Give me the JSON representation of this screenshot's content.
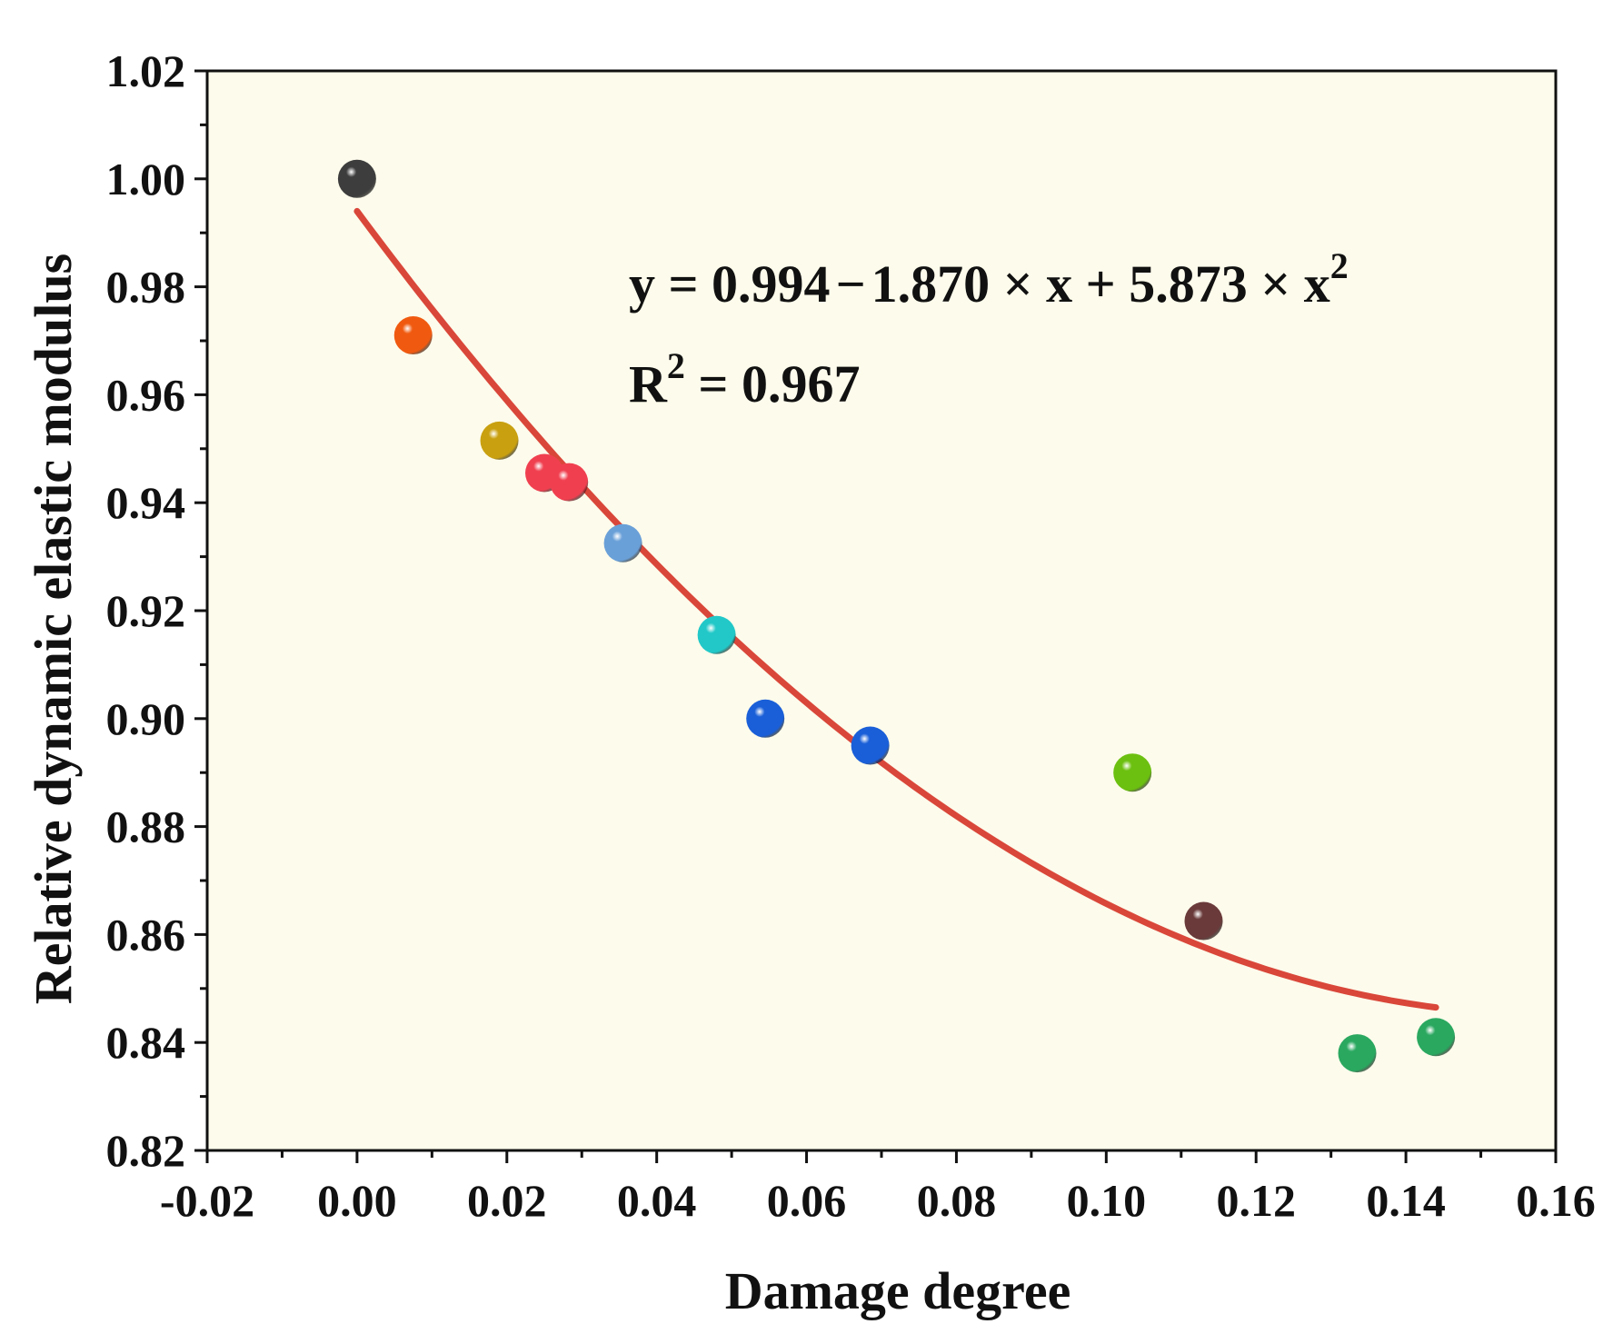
{
  "chart_data": {
    "type": "scatter",
    "title": "",
    "xlabel": "Damage degree",
    "ylabel": "Relative dynamic elastic modulus",
    "xlim": [
      -0.02,
      0.16
    ],
    "ylim": [
      0.82,
      1.02
    ],
    "xticks": [
      -0.02,
      0.0,
      0.02,
      0.04,
      0.06,
      0.08,
      0.1,
      0.12,
      0.14,
      0.16
    ],
    "xtick_labels": [
      "-0.02",
      "0.00",
      "0.02",
      "0.04",
      "0.06",
      "0.08",
      "0.10",
      "0.12",
      "0.14",
      "0.16"
    ],
    "yticks": [
      0.82,
      0.84,
      0.86,
      0.88,
      0.9,
      0.92,
      0.94,
      0.96,
      0.98,
      1.0,
      1.02
    ],
    "ytick_labels": [
      "0.82",
      "0.84",
      "0.86",
      "0.88",
      "0.90",
      "0.92",
      "0.94",
      "0.96",
      "0.98",
      "1.00",
      "1.02"
    ],
    "grid": false,
    "background_color": "#fdfbeb",
    "points": [
      {
        "x": 0.0,
        "y": 1.0,
        "color": "#3d3d3d"
      },
      {
        "x": 0.0075,
        "y": 0.971,
        "color": "#f05a10"
      },
      {
        "x": 0.019,
        "y": 0.9515,
        "color": "#c9a010"
      },
      {
        "x": 0.025,
        "y": 0.9455,
        "color": "#f04050"
      },
      {
        "x": 0.0283,
        "y": 0.9438,
        "color": "#f04050"
      },
      {
        "x": 0.0355,
        "y": 0.9325,
        "color": "#6aa0d8"
      },
      {
        "x": 0.048,
        "y": 0.9155,
        "color": "#22c8c8"
      },
      {
        "x": 0.0545,
        "y": 0.9,
        "color": "#1a5fd8"
      },
      {
        "x": 0.0685,
        "y": 0.895,
        "color": "#1a5fd8"
      },
      {
        "x": 0.1035,
        "y": 0.89,
        "color": "#6cc010"
      },
      {
        "x": 0.113,
        "y": 0.8625,
        "color": "#6a3a3a"
      },
      {
        "x": 0.1335,
        "y": 0.838,
        "color": "#2aa860"
      },
      {
        "x": 0.144,
        "y": 0.841,
        "color": "#2aa860"
      }
    ],
    "fit": {
      "type": "quadratic",
      "coefficients": [
        0.994,
        -1.87,
        5.873
      ],
      "x_range": [
        0.0,
        0.144
      ],
      "color": "#d9473a",
      "equation_parts": [
        "y = 0.994",
        "−",
        "1.870 × x + 5.873 × x",
        "2"
      ],
      "r2_parts": [
        "R",
        "2",
        " = 0.967"
      ]
    }
  }
}
